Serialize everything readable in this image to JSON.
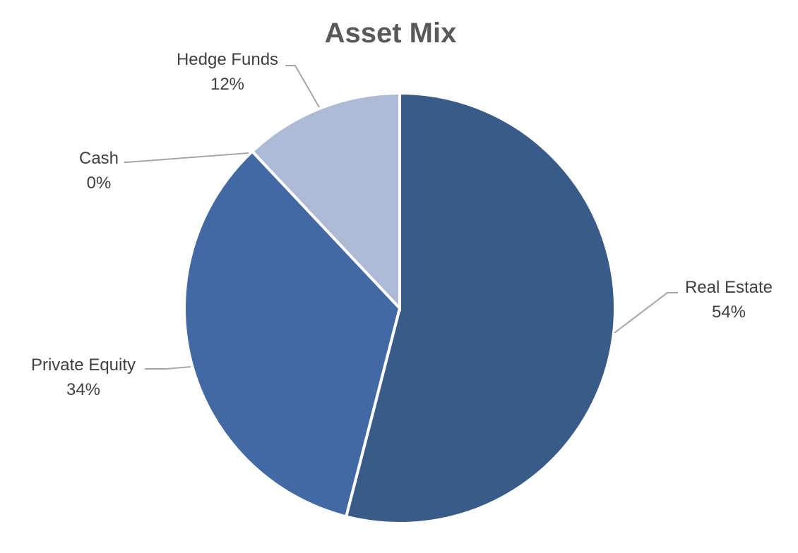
{
  "chart_data": {
    "type": "pie",
    "title": "Asset Mix",
    "slices": [
      {
        "label": "Real Estate",
        "value": 54,
        "display": "54%",
        "color": "#395b8a"
      },
      {
        "label": "Private Equity",
        "value": 34,
        "display": "34%",
        "color": "#4269a3"
      },
      {
        "label": "Cash",
        "value": 0,
        "display": "0%",
        "color": "#5a7fb8"
      },
      {
        "label": "Hedge Funds",
        "value": 12,
        "display": "12%",
        "color": "#adbad6"
      }
    ],
    "start_angle_deg": 0,
    "direction": "clockwise",
    "data_labels": "category-and-percent",
    "legend": "none"
  }
}
